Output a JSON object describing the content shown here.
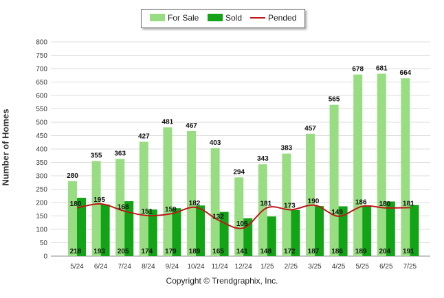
{
  "chart_data": {
    "type": "bar",
    "categories": [
      "5/24",
      "6/24",
      "7/24",
      "8/24",
      "9/24",
      "10/24",
      "11/24",
      "12/24",
      "1/25",
      "2/25",
      "3/25",
      "4/25",
      "5/25",
      "6/25",
      "7/25"
    ],
    "series": [
      {
        "name": "For Sale",
        "type": "bar",
        "color": "#99dd83",
        "values": [
          280,
          355,
          363,
          427,
          481,
          467,
          403,
          294,
          343,
          383,
          457,
          565,
          678,
          681,
          664
        ]
      },
      {
        "name": "Sold",
        "type": "bar",
        "color": "#13a316",
        "values": [
          218,
          193,
          205,
          174,
          179,
          189,
          165,
          141,
          148,
          172,
          187,
          186,
          189,
          204,
          191
        ]
      },
      {
        "name": "Pended",
        "type": "line",
        "color": "#c0151b",
        "values": [
          180,
          195,
          168,
          151,
          159,
          182,
          132,
          105,
          181,
          173,
          190,
          149,
          186,
          180,
          181
        ]
      }
    ],
    "ylabel": "Number of Homes",
    "xlabel": "",
    "ylim": [
      0,
      800
    ],
    "yticks": [
      0,
      50,
      100,
      150,
      200,
      250,
      300,
      350,
      400,
      450,
      500,
      550,
      600,
      650,
      700,
      750,
      800
    ],
    "grid": true,
    "legend_position": "top-center"
  },
  "legend": {
    "for_sale": "For Sale",
    "sold": "Sold",
    "pended": "Pended"
  },
  "footer": {
    "copyright": "Copyright © Trendgraphix, Inc."
  }
}
